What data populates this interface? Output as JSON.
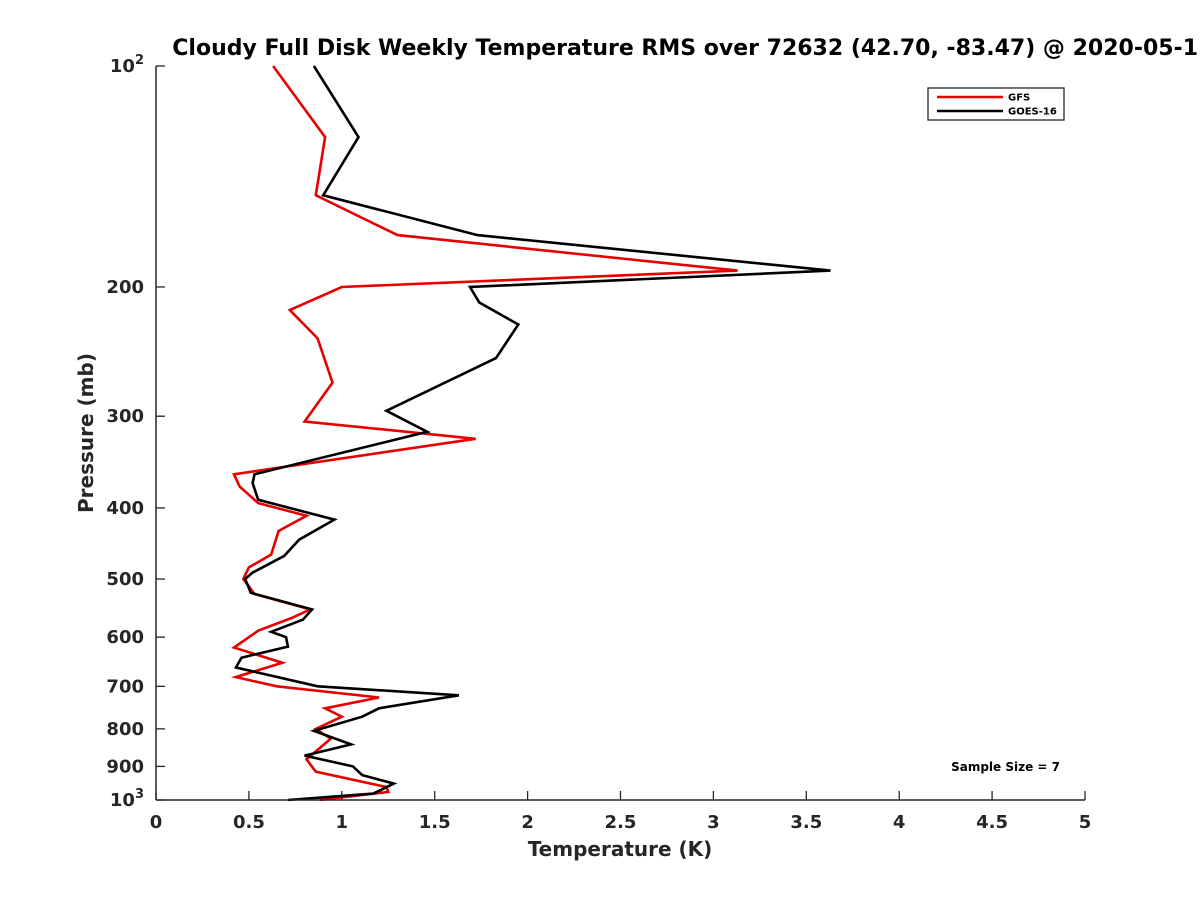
{
  "chart_data": {
    "type": "line",
    "title": "Cloudy Full Disk Weekly Temperature RMS over 72632 (42.70, -83.47) @ 2020-05-1",
    "xlabel": "Temperature (K)",
    "ylabel": "Pressure (mb)",
    "xlim": [
      0,
      5
    ],
    "ylim": [
      1000,
      100
    ],
    "y_scale": "log",
    "grid": false,
    "legend_position": "top-right",
    "x_ticks": [
      {
        "value": 0,
        "label": "0"
      },
      {
        "value": 0.5,
        "label": "0.5"
      },
      {
        "value": 1,
        "label": "1"
      },
      {
        "value": 1.5,
        "label": "1.5"
      },
      {
        "value": 2,
        "label": "2"
      },
      {
        "value": 2.5,
        "label": "2.5"
      },
      {
        "value": 3,
        "label": "3"
      },
      {
        "value": 3.5,
        "label": "3.5"
      },
      {
        "value": 4,
        "label": "4"
      },
      {
        "value": 4.5,
        "label": "4.5"
      },
      {
        "value": 5,
        "label": "5"
      }
    ],
    "y_ticks": [
      {
        "value": 100,
        "label": "10",
        "sup": "2"
      },
      {
        "value": 200,
        "label": "200",
        "sup": ""
      },
      {
        "value": 300,
        "label": "300",
        "sup": ""
      },
      {
        "value": 400,
        "label": "400",
        "sup": ""
      },
      {
        "value": 500,
        "label": "500",
        "sup": ""
      },
      {
        "value": 600,
        "label": "600",
        "sup": ""
      },
      {
        "value": 700,
        "label": "700",
        "sup": ""
      },
      {
        "value": 800,
        "label": "800",
        "sup": ""
      },
      {
        "value": 900,
        "label": "900",
        "sup": ""
      },
      {
        "value": 1000,
        "label": "10",
        "sup": "3"
      }
    ],
    "series": [
      {
        "name": "GFS",
        "color": "#e60000",
        "points": [
          [
            0.63,
            100
          ],
          [
            0.91,
            125
          ],
          [
            0.86,
            150
          ],
          [
            1.3,
            170
          ],
          [
            3.13,
            190
          ],
          [
            1.0,
            200
          ],
          [
            0.72,
            215
          ],
          [
            0.87,
            235
          ],
          [
            0.95,
            270
          ],
          [
            0.8,
            305
          ],
          [
            1.72,
            322
          ],
          [
            0.42,
            360
          ],
          [
            0.45,
            374
          ],
          [
            0.55,
            394
          ],
          [
            0.81,
            410
          ],
          [
            0.66,
            430
          ],
          [
            0.62,
            463
          ],
          [
            0.5,
            482
          ],
          [
            0.47,
            500
          ],
          [
            0.53,
            524
          ],
          [
            0.83,
            550
          ],
          [
            0.73,
            565
          ],
          [
            0.55,
            588
          ],
          [
            0.42,
            620
          ],
          [
            0.68,
            650
          ],
          [
            0.43,
            680
          ],
          [
            0.65,
            700
          ],
          [
            1.2,
            725
          ],
          [
            0.91,
            750
          ],
          [
            1.0,
            770
          ],
          [
            0.86,
            800
          ],
          [
            0.94,
            825
          ],
          [
            0.88,
            850
          ],
          [
            0.81,
            880
          ],
          [
            0.86,
            915
          ],
          [
            1.24,
            960
          ],
          [
            1.25,
            975
          ],
          [
            0.88,
            1000
          ]
        ]
      },
      {
        "name": "GOES-16",
        "color": "#000000",
        "points": [
          [
            0.85,
            100
          ],
          [
            1.09,
            125
          ],
          [
            0.9,
            150
          ],
          [
            1.73,
            170
          ],
          [
            3.63,
            190
          ],
          [
            1.69,
            200
          ],
          [
            1.74,
            210
          ],
          [
            1.95,
            225
          ],
          [
            1.83,
            250
          ],
          [
            1.24,
            295
          ],
          [
            1.46,
            315
          ],
          [
            0.53,
            360
          ],
          [
            0.52,
            370
          ],
          [
            0.55,
            390
          ],
          [
            0.96,
            415
          ],
          [
            0.77,
            442
          ],
          [
            0.69,
            465
          ],
          [
            0.52,
            490
          ],
          [
            0.48,
            500
          ],
          [
            0.51,
            522
          ],
          [
            0.84,
            550
          ],
          [
            0.79,
            568
          ],
          [
            0.62,
            590
          ],
          [
            0.7,
            600
          ],
          [
            0.71,
            618
          ],
          [
            0.46,
            640
          ],
          [
            0.43,
            660
          ],
          [
            0.87,
            700
          ],
          [
            1.63,
            720
          ],
          [
            1.2,
            750
          ],
          [
            1.11,
            770
          ],
          [
            0.85,
            805
          ],
          [
            1.05,
            840
          ],
          [
            0.8,
            870
          ],
          [
            1.06,
            900
          ],
          [
            1.11,
            925
          ],
          [
            1.28,
            950
          ],
          [
            1.17,
            980
          ],
          [
            0.71,
            1000
          ]
        ]
      }
    ],
    "annotation": "Sample Size = 7"
  }
}
